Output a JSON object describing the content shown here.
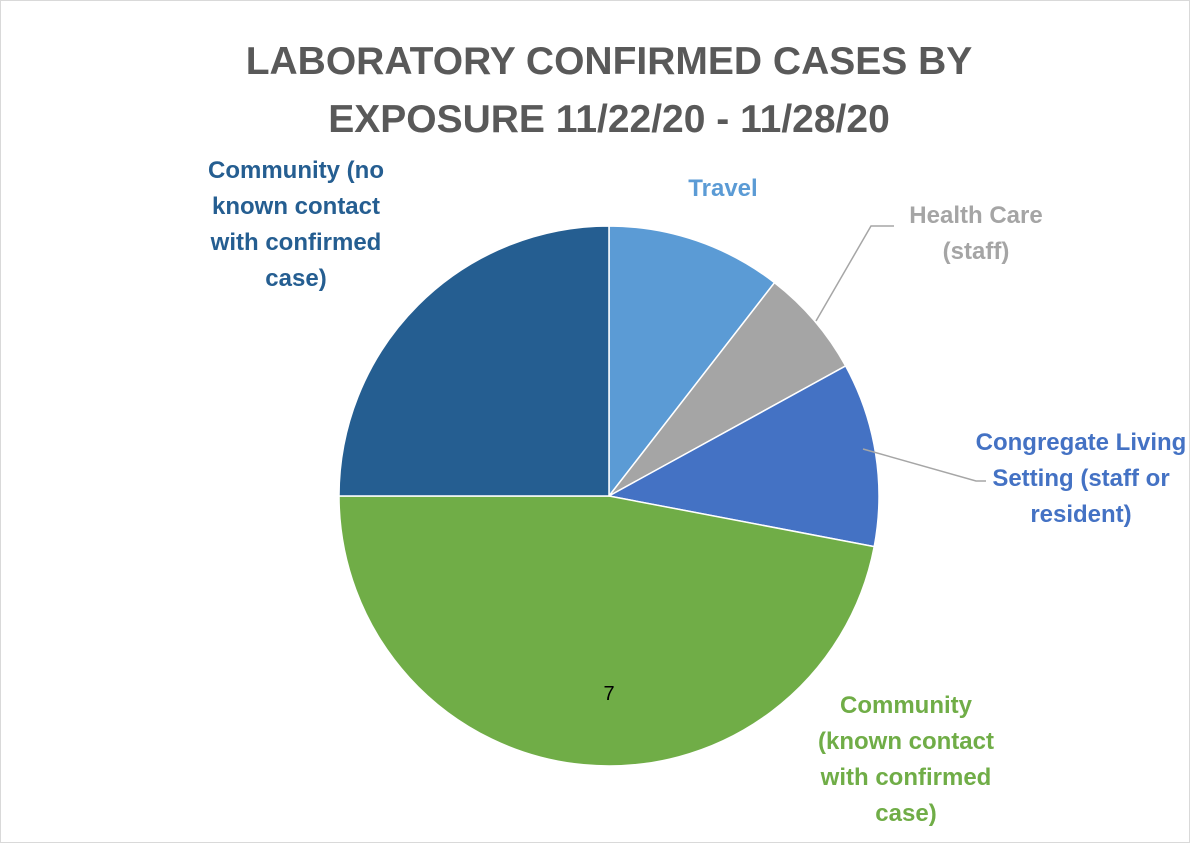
{
  "chart_data": {
    "type": "pie",
    "title": "LABORATORY CONFIRMED CASES BY EXPOSURE 11/22/20 - 11/28/20",
    "annotation": "7",
    "series": [
      {
        "name": "Travel",
        "color": "#5b9bd5",
        "value": 10.5
      },
      {
        "name": "Health Care (staff)",
        "color": "#a5a5a5",
        "value": 6.5
      },
      {
        "name": "Congregate Living Setting (staff or resident)",
        "color": "#4472c4",
        "value": 11
      },
      {
        "name": "Community (known contact with confirmed case)",
        "color": "#70ad47",
        "value": 47
      },
      {
        "name": "Community (no known contact with confirmed case)",
        "color": "#255e91",
        "value": 25
      }
    ]
  }
}
